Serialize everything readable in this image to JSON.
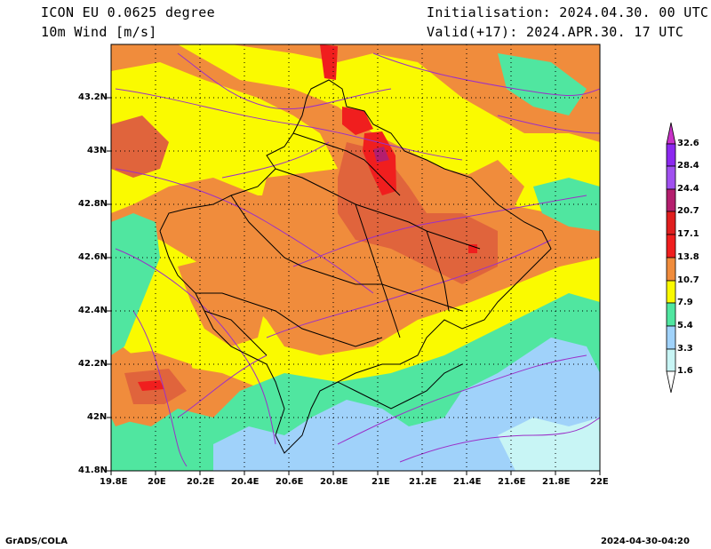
{
  "header": {
    "model": "ICON EU 0.0625 degree",
    "variable": "10m Wind [m/s]",
    "init": "Initialisation: 2024.04.30. 00 UTC",
    "valid": "Valid(+17): 2024.APR.30. 17 UTC"
  },
  "map": {
    "lon_range": [
      19.8,
      22.0
    ],
    "lat_range": [
      41.8,
      43.4
    ],
    "lon_ticks": [
      "19.8E",
      "20E",
      "20.2E",
      "20.4E",
      "20.6E",
      "20.8E",
      "21E",
      "21.2E",
      "21.4E",
      "21.6E",
      "21.8E",
      "22E"
    ],
    "lat_ticks": [
      "41.8N",
      "42N",
      "42.2N",
      "42.4N",
      "42.6N",
      "42.8N",
      "43N",
      "43.2N"
    ],
    "gridlines": "dotted"
  },
  "colorbar": {
    "labels": [
      "1.6",
      "3.3",
      "5.4",
      "7.9",
      "10.7",
      "13.8",
      "17.1",
      "20.7",
      "24.4",
      "28.4",
      "32.6"
    ],
    "colors": [
      "#c8f5f5",
      "#a0d2fa",
      "#50e6a0",
      "#fafa00",
      "#fac832",
      "#f08c3c",
      "#f01e1e",
      "#b41e6e",
      "#a050f0",
      "#8c28f0",
      "#c832c8"
    ]
  },
  "footer": {
    "left": "GrADS/COLA",
    "right": "2024-04-30-04:20"
  }
}
